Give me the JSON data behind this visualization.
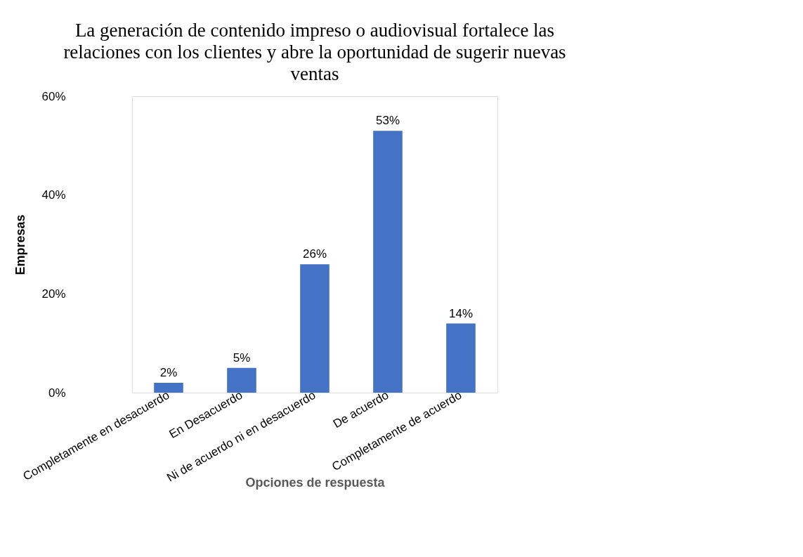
{
  "chart_data": {
    "type": "bar",
    "title": [
      "La generación de contenido impreso o audiovisual fortalece las",
      "relaciones con los clientes y abre la oportunidad de sugerir nuevas",
      "ventas"
    ],
    "xlabel": "Opciones de respuesta",
    "ylabel": "Empresas",
    "categories": [
      "Completamente en desacuerdo",
      "En Desacuerdo",
      "Ni de acuerdo ni en desacuerdo",
      "De acuerdo",
      "Completamente de acuerdo"
    ],
    "values": [
      2,
      5,
      26,
      53,
      14
    ],
    "color": "#4472c4",
    "value_labels": [
      "2%",
      "5%",
      "26%",
      "53%",
      "14%"
    ],
    "ylim": [
      0,
      60
    ],
    "yticks": [
      {
        "value": 0,
        "label": "0%"
      },
      {
        "value": 20,
        "label": "20%"
      },
      {
        "value": 40,
        "label": "40%"
      },
      {
        "value": 60,
        "label": "60%"
      }
    ],
    "grid": false
  }
}
